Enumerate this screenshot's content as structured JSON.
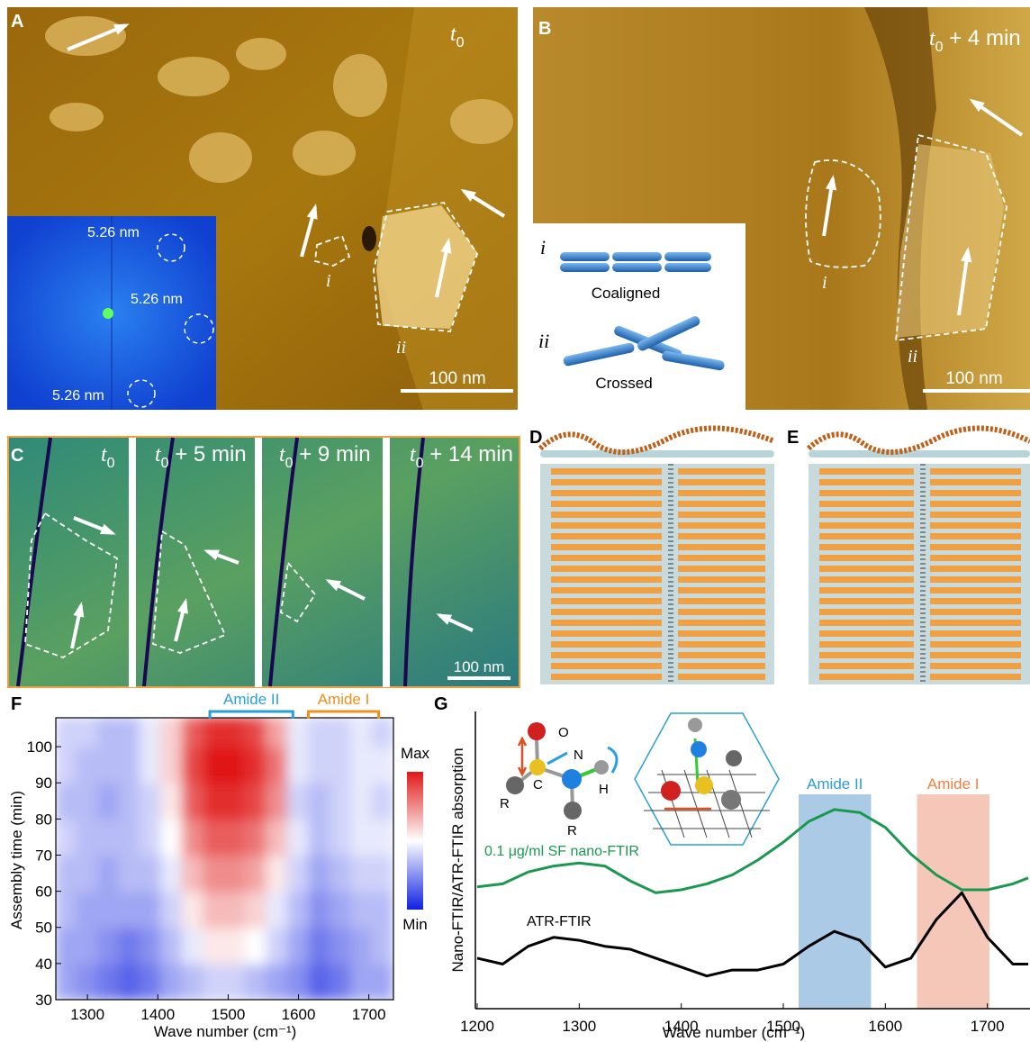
{
  "panels": {
    "A": {
      "label": "A",
      "time": {
        "t": "t",
        "sub": "0"
      },
      "fft_labels": [
        "5.26 nm",
        "5.26 nm",
        "5.26 nm"
      ],
      "region_labels": [
        "i",
        "ii"
      ],
      "scale_bar": "100 nm"
    },
    "B": {
      "label": "B",
      "time": {
        "t": "t",
        "sub": "0",
        "rest": " + 4 min"
      },
      "region_labels": [
        "i",
        "ii"
      ],
      "scale_bar": "100 nm",
      "inset": [
        {
          "numeral": "i",
          "caption": "Coaligned"
        },
        {
          "numeral": "ii",
          "caption": "Crossed"
        }
      ]
    },
    "C": {
      "label": "C",
      "frames": [
        {
          "t": "t",
          "sub": "0"
        },
        {
          "t": "t",
          "sub": "0",
          "rest": " + 5 min"
        },
        {
          "t": "t",
          "sub": "0",
          "rest": " + 9 min"
        },
        {
          "t": "t",
          "sub": "0",
          "rest": " + 14 min"
        }
      ],
      "scale_bar": "100 nm"
    },
    "D": {
      "label": "D"
    },
    "E": {
      "label": "E"
    }
  },
  "chart_data": [
    {
      "type": "heatmap",
      "panel_label": "F",
      "xlabel": "Wave number (cm⁻¹)",
      "ylabel": "Assembly time (min)",
      "x_edges": [
        1255,
        1285,
        1315,
        1345,
        1375,
        1405,
        1435,
        1465,
        1495,
        1525,
        1555,
        1585,
        1615,
        1645,
        1675,
        1705,
        1735
      ],
      "y_edges": [
        30,
        40,
        50,
        60,
        70,
        80,
        90,
        100,
        108
      ],
      "values": [
        [
          0.3,
          0.25,
          0.2,
          0.15,
          0.2,
          0.3,
          0.35,
          0.4,
          0.4,
          0.35,
          0.3,
          0.25,
          0.15,
          0.2,
          0.3,
          0.3
        ],
        [
          0.3,
          0.3,
          0.25,
          0.2,
          0.25,
          0.35,
          0.45,
          0.55,
          0.55,
          0.5,
          0.4,
          0.3,
          0.2,
          0.25,
          0.3,
          0.35
        ],
        [
          0.35,
          0.3,
          0.3,
          0.3,
          0.3,
          0.4,
          0.55,
          0.65,
          0.65,
          0.6,
          0.45,
          0.35,
          0.25,
          0.3,
          0.35,
          0.35
        ],
        [
          0.35,
          0.35,
          0.3,
          0.35,
          0.35,
          0.45,
          0.65,
          0.75,
          0.75,
          0.7,
          0.55,
          0.4,
          0.3,
          0.35,
          0.4,
          0.4
        ],
        [
          0.4,
          0.35,
          0.35,
          0.35,
          0.4,
          0.5,
          0.75,
          0.85,
          0.85,
          0.8,
          0.65,
          0.45,
          0.35,
          0.4,
          0.45,
          0.45
        ],
        [
          0.35,
          0.35,
          0.3,
          0.35,
          0.4,
          0.55,
          0.85,
          0.95,
          0.95,
          0.9,
          0.75,
          0.4,
          0.35,
          0.4,
          0.45,
          0.4
        ],
        [
          0.4,
          0.35,
          0.35,
          0.35,
          0.45,
          0.6,
          0.9,
          1,
          1,
          0.95,
          0.8,
          0.45,
          0.4,
          0.4,
          0.45,
          0.45
        ],
        [
          0.4,
          0.4,
          0.35,
          0.35,
          0.45,
          0.6,
          0.85,
          0.95,
          0.95,
          0.9,
          0.7,
          0.45,
          0.4,
          0.4,
          0.45,
          0.4
        ]
      ],
      "zlim": [
        0,
        1
      ],
      "colors": {
        "low": "#1020e0",
        "mid": "#ffffff",
        "high": "#e01818"
      },
      "xlim": [
        1255,
        1735
      ],
      "ylim": [
        30,
        108
      ],
      "xticks": [
        1300,
        1400,
        1500,
        1600,
        1700
      ],
      "yticks": [
        30,
        40,
        50,
        60,
        70,
        80,
        90,
        100
      ],
      "brackets": [
        {
          "label": "Amide II",
          "range": [
            1474,
            1592
          ],
          "color": "#2a9fd6"
        },
        {
          "label": "Amide I",
          "range": [
            1614,
            1714
          ],
          "color": "#f0901e"
        }
      ],
      "colorbar": {
        "max_label": "Max",
        "min_label": "Min"
      }
    },
    {
      "type": "line",
      "panel_label": "G",
      "xlabel": "Wave number (cm⁻¹)",
      "ylabel": "Nano-FTIR/ATR-FTIR absorption",
      "x": [
        1200,
        1225,
        1250,
        1275,
        1300,
        1325,
        1350,
        1375,
        1400,
        1425,
        1450,
        1475,
        1500,
        1525,
        1550,
        1575,
        1600,
        1625,
        1650,
        1675,
        1700,
        1725,
        1740
      ],
      "series": [
        {
          "name": "0.1 μg/ml  SF nano-FTIR",
          "color": "#1a9850",
          "values": [
            0.41,
            0.42,
            0.46,
            0.48,
            0.49,
            0.48,
            0.43,
            0.39,
            0.4,
            0.42,
            0.45,
            0.5,
            0.56,
            0.63,
            0.67,
            0.66,
            0.61,
            0.52,
            0.45,
            0.4,
            0.4,
            0.42,
            0.44
          ]
        },
        {
          "name": "ATR-FTIR",
          "color": "#000000",
          "values": [
            0.17,
            0.15,
            0.21,
            0.24,
            0.23,
            0.21,
            0.2,
            0.17,
            0.14,
            0.11,
            0.13,
            0.13,
            0.15,
            0.21,
            0.26,
            0.23,
            0.14,
            0.17,
            0.3,
            0.39,
            0.24,
            0.15,
            0.15
          ]
        }
      ],
      "xlim": [
        1200,
        1740
      ],
      "ylim": [
        0,
        1
      ],
      "xticks": [
        1200,
        1300,
        1400,
        1500,
        1600,
        1700
      ],
      "bands": [
        {
          "label": "Amide II",
          "range": [
            1515,
            1586
          ],
          "color": "#8fb8dc"
        },
        {
          "label": "Amide I",
          "range": [
            1631,
            1702
          ],
          "color": "#f2b4a0"
        }
      ],
      "molecule_labels": [
        "O",
        "N",
        "C",
        "H",
        "R",
        "R"
      ]
    }
  ]
}
